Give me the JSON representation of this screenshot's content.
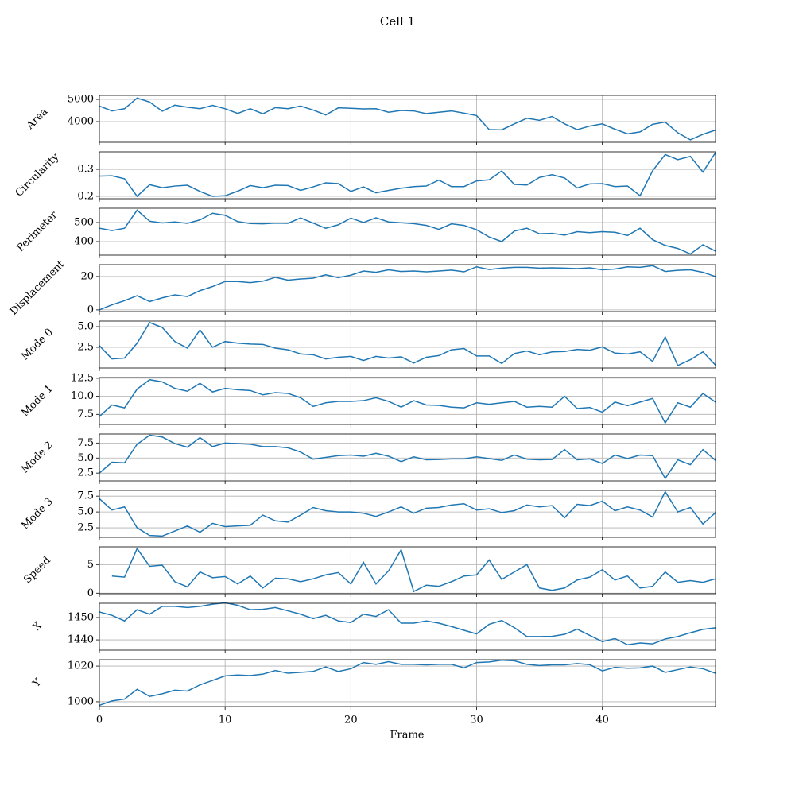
{
  "title": "Cell 1",
  "xlabel": "Frame",
  "x": [
    0,
    1,
    2,
    3,
    4,
    5,
    6,
    7,
    8,
    9,
    10,
    11,
    12,
    13,
    14,
    15,
    16,
    17,
    18,
    19,
    20,
    21,
    22,
    23,
    24,
    25,
    26,
    27,
    28,
    29,
    30,
    31,
    32,
    33,
    34,
    35,
    36,
    37,
    38,
    39,
    40,
    41,
    42,
    43,
    44,
    45,
    46,
    47,
    48,
    49
  ],
  "xlim": [
    0,
    49
  ],
  "xticks": [
    0,
    10,
    20,
    30,
    40
  ],
  "chart_data": [
    {
      "type": "line",
      "ylabel": "Area",
      "color": "#1f77b4",
      "grid": true,
      "ylim": [
        3070,
        5180
      ],
      "yticks": [
        4000,
        5000
      ],
      "values": [
        4700,
        4480,
        4580,
        5060,
        4880,
        4470,
        4740,
        4650,
        4580,
        4730,
        4580,
        4370,
        4580,
        4350,
        4630,
        4580,
        4700,
        4520,
        4300,
        4620,
        4600,
        4570,
        4580,
        4420,
        4500,
        4480,
        4360,
        4420,
        4480,
        4380,
        4270,
        3640,
        3630,
        3900,
        4150,
        4060,
        4230,
        3900,
        3640,
        3800,
        3900,
        3660,
        3450,
        3540,
        3880,
        3980,
        3500,
        3180,
        3430,
        3620
      ]
    },
    {
      "type": "line",
      "ylabel": "Circularity",
      "color": "#1f77b4",
      "grid": true,
      "ylim": [
        0.191,
        0.365
      ],
      "yticks": [
        0.2,
        0.3
      ],
      "values": [
        0.275,
        0.276,
        0.265,
        0.2,
        0.243,
        0.232,
        0.238,
        0.241,
        0.218,
        0.2,
        0.202,
        0.219,
        0.24,
        0.232,
        0.241,
        0.24,
        0.222,
        0.235,
        0.25,
        0.247,
        0.218,
        0.235,
        0.213,
        0.222,
        0.23,
        0.236,
        0.238,
        0.26,
        0.236,
        0.236,
        0.257,
        0.261,
        0.294,
        0.244,
        0.242,
        0.27,
        0.28,
        0.268,
        0.231,
        0.246,
        0.247,
        0.236,
        0.238,
        0.202,
        0.295,
        0.355,
        0.336,
        0.348,
        0.29,
        0.362
      ]
    },
    {
      "type": "line",
      "ylabel": "Perimeter",
      "color": "#1f77b4",
      "grid": true,
      "ylim": [
        329,
        575
      ],
      "yticks": [
        400,
        500
      ],
      "values": [
        470,
        458,
        470,
        565,
        507,
        498,
        503,
        496,
        514,
        549,
        538,
        505,
        495,
        493,
        497,
        496,
        524,
        497,
        470,
        488,
        523,
        500,
        525,
        503,
        499,
        494,
        485,
        464,
        493,
        485,
        462,
        424,
        400,
        455,
        470,
        441,
        443,
        434,
        452,
        447,
        452,
        449,
        432,
        470,
        410,
        380,
        364,
        335,
        383,
        350
      ]
    },
    {
      "type": "line",
      "ylabel": "Displacement",
      "color": "#1f77b4",
      "grid": true,
      "ylim": [
        -1,
        27.1
      ],
      "yticks": [
        0,
        20
      ],
      "values": [
        0,
        3,
        5.5,
        8.5,
        5,
        7.2,
        9,
        8,
        11.5,
        14,
        17,
        17,
        16.3,
        17.2,
        19.5,
        17.8,
        18.5,
        19,
        21,
        19.3,
        20.8,
        23.3,
        22.5,
        24,
        23,
        23.3,
        22.8,
        23.3,
        23.8,
        22.8,
        25.8,
        24.2,
        25,
        25.5,
        25.5,
        25,
        25.2,
        25,
        24.7,
        25.2,
        24,
        24.5,
        25.8,
        25.5,
        26.5,
        23,
        23.7,
        24,
        22.5,
        20
      ]
    },
    {
      "type": "line",
      "ylabel": "Mode 0",
      "color": "#1f77b4",
      "grid": true,
      "ylim": [
        0,
        5.67
      ],
      "yticks": [
        2.5,
        {
          "value": 5,
          "label": "5.0"
        }
      ],
      "values": [
        2.7,
        1.1,
        1.2,
        3.0,
        5.5,
        4.9,
        3.2,
        2.4,
        4.6,
        2.5,
        3.2,
        3.0,
        2.9,
        2.85,
        2.4,
        2.2,
        1.7,
        1.6,
        1.1,
        1.3,
        1.4,
        0.9,
        1.4,
        1.2,
        1.35,
        0.6,
        1.3,
        1.5,
        2.2,
        2.35,
        1.45,
        1.45,
        0.55,
        1.75,
        2.05,
        1.6,
        1.95,
        2.0,
        2.25,
        2.15,
        2.55,
        1.8,
        1.7,
        1.95,
        0.8,
        3.75,
        0.3,
        1.0,
        1.95,
        0.35
      ]
    },
    {
      "type": "line",
      "ylabel": "Mode 1",
      "color": "#1f77b4",
      "grid": true,
      "ylim": [
        6.1,
        12.6
      ],
      "yticks": [
        7.5,
        {
          "value": 10,
          "label": "10.0"
        },
        12.5
      ],
      "values": [
        7.2,
        8.8,
        8.4,
        11,
        12.3,
        12.0,
        11.1,
        10.7,
        11.8,
        10.6,
        11.1,
        10.9,
        10.8,
        10.2,
        10.5,
        10.4,
        9.8,
        8.6,
        9.1,
        9.3,
        9.3,
        9.4,
        9.8,
        9.3,
        8.5,
        9.4,
        8.8,
        8.75,
        8.5,
        8.4,
        9.1,
        8.9,
        9.1,
        9.3,
        8.5,
        8.6,
        8.5,
        10.0,
        8.3,
        8.45,
        7.8,
        9.2,
        8.7,
        9.2,
        9.7,
        6.3,
        9.1,
        8.5,
        10.4,
        9.2
      ]
    },
    {
      "type": "line",
      "ylabel": "Mode 2",
      "color": "#1f77b4",
      "grid": true,
      "ylim": [
        1.2,
        9.0
      ],
      "yticks": [
        2.5,
        {
          "value": 5,
          "label": "5.0"
        },
        7.5
      ],
      "values": [
        2.5,
        4.3,
        4.2,
        7.3,
        8.8,
        8.5,
        7.4,
        6.8,
        8.4,
        6.9,
        7.5,
        7.4,
        7.3,
        6.9,
        6.9,
        6.7,
        6.0,
        4.8,
        5.1,
        5.4,
        5.5,
        5.3,
        5.8,
        5.3,
        4.4,
        5.2,
        4.7,
        4.75,
        4.85,
        4.85,
        5.2,
        4.9,
        4.6,
        5.5,
        4.8,
        4.7,
        4.75,
        6.4,
        4.7,
        4.85,
        4.1,
        5.5,
        4.9,
        5.5,
        5.4,
        1.6,
        4.7,
        3.9,
        6.4,
        4.6
      ]
    },
    {
      "type": "line",
      "ylabel": "Mode 3",
      "color": "#1f77b4",
      "grid": true,
      "ylim": [
        1.0,
        8.4
      ],
      "yticks": [
        2.5,
        {
          "value": 5,
          "label": "5.0"
        },
        7.5
      ],
      "values": [
        7.1,
        5.3,
        5.8,
        2.5,
        1.3,
        1.2,
        2.0,
        2.8,
        1.8,
        3.2,
        2.7,
        2.8,
        2.9,
        4.5,
        3.6,
        3.4,
        4.5,
        5.7,
        5.2,
        5.0,
        5.0,
        4.8,
        4.3,
        5.0,
        5.8,
        4.8,
        5.6,
        5.7,
        6.1,
        6.3,
        5.3,
        5.5,
        4.9,
        5.2,
        6.1,
        5.8,
        6.0,
        4.1,
        6.2,
        6.0,
        6.7,
        5.2,
        5.8,
        5.3,
        4.2,
        8.2,
        5.0,
        5.7,
        3.1,
        4.9
      ]
    },
    {
      "type": "line",
      "ylabel": "Speed",
      "color": "#1f77b4",
      "grid": true,
      "ylim": [
        -0.1,
        8.1
      ],
      "yticks": [
        0,
        5
      ],
      "values": [
        null,
        3.0,
        2.8,
        7.8,
        4.7,
        4.9,
        2.0,
        1.1,
        3.7,
        2.7,
        2.9,
        1.6,
        3.0,
        0.9,
        2.6,
        2.5,
        2.0,
        2.5,
        3.2,
        3.6,
        1.6,
        5.4,
        1.6,
        3.9,
        7.6,
        0.3,
        1.4,
        1.2,
        2.0,
        3.0,
        3.2,
        5.8,
        2.4,
        3.7,
        5.0,
        0.9,
        0.5,
        0.9,
        2.3,
        2.8,
        4.1,
        2.3,
        3.0,
        0.9,
        1.2,
        3.7,
        1.9,
        2.2,
        1.9,
        2.5
      ]
    },
    {
      "type": "line",
      "ylabel": "X",
      "color": "#1f77b4",
      "grid": true,
      "ylim": [
        1435.4,
        1456.4
      ],
      "yticks": [
        1440,
        1450
      ],
      "values": [
        1452.5,
        1451,
        1448.5,
        1453.5,
        1451.5,
        1455,
        1455,
        1454.5,
        1455,
        1456,
        1456.6,
        1455.5,
        1453.5,
        1453.7,
        1454.5,
        1453,
        1451.5,
        1449.5,
        1451,
        1448.5,
        1447.8,
        1451.5,
        1450.5,
        1453.5,
        1447.5,
        1447.5,
        1448.5,
        1447.5,
        1446,
        1444.3,
        1442.7,
        1447,
        1448.7,
        1445.5,
        1441.5,
        1441.5,
        1441.6,
        1442.5,
        1444.8,
        1442,
        1439.2,
        1440.6,
        1437.8,
        1438.6,
        1438.2,
        1440.4,
        1441.5,
        1443.2,
        1444.7,
        1445.4
      ]
    },
    {
      "type": "line",
      "ylabel": "Y",
      "color": "#1f77b4",
      "grid": true,
      "ylim": [
        997.3,
        1023.6
      ],
      "yticks": [
        1000,
        1020
      ],
      "values": [
        998,
        1000.5,
        1001.5,
        1007,
        1003,
        1004.5,
        1006.5,
        1006,
        1009.5,
        1012,
        1014.5,
        1015,
        1014.7,
        1015.5,
        1017.5,
        1016,
        1016.5,
        1017,
        1019.5,
        1017,
        1018.5,
        1022,
        1021,
        1022.5,
        1021,
        1021,
        1020.7,
        1021,
        1021,
        1019,
        1022,
        1022.3,
        1023.3,
        1023,
        1021,
        1020.3,
        1020.7,
        1020.7,
        1021.4,
        1020.8,
        1017.3,
        1019.3,
        1018.8,
        1019,
        1020,
        1016.5,
        1018,
        1019.5,
        1018.5,
        1016
      ]
    }
  ]
}
